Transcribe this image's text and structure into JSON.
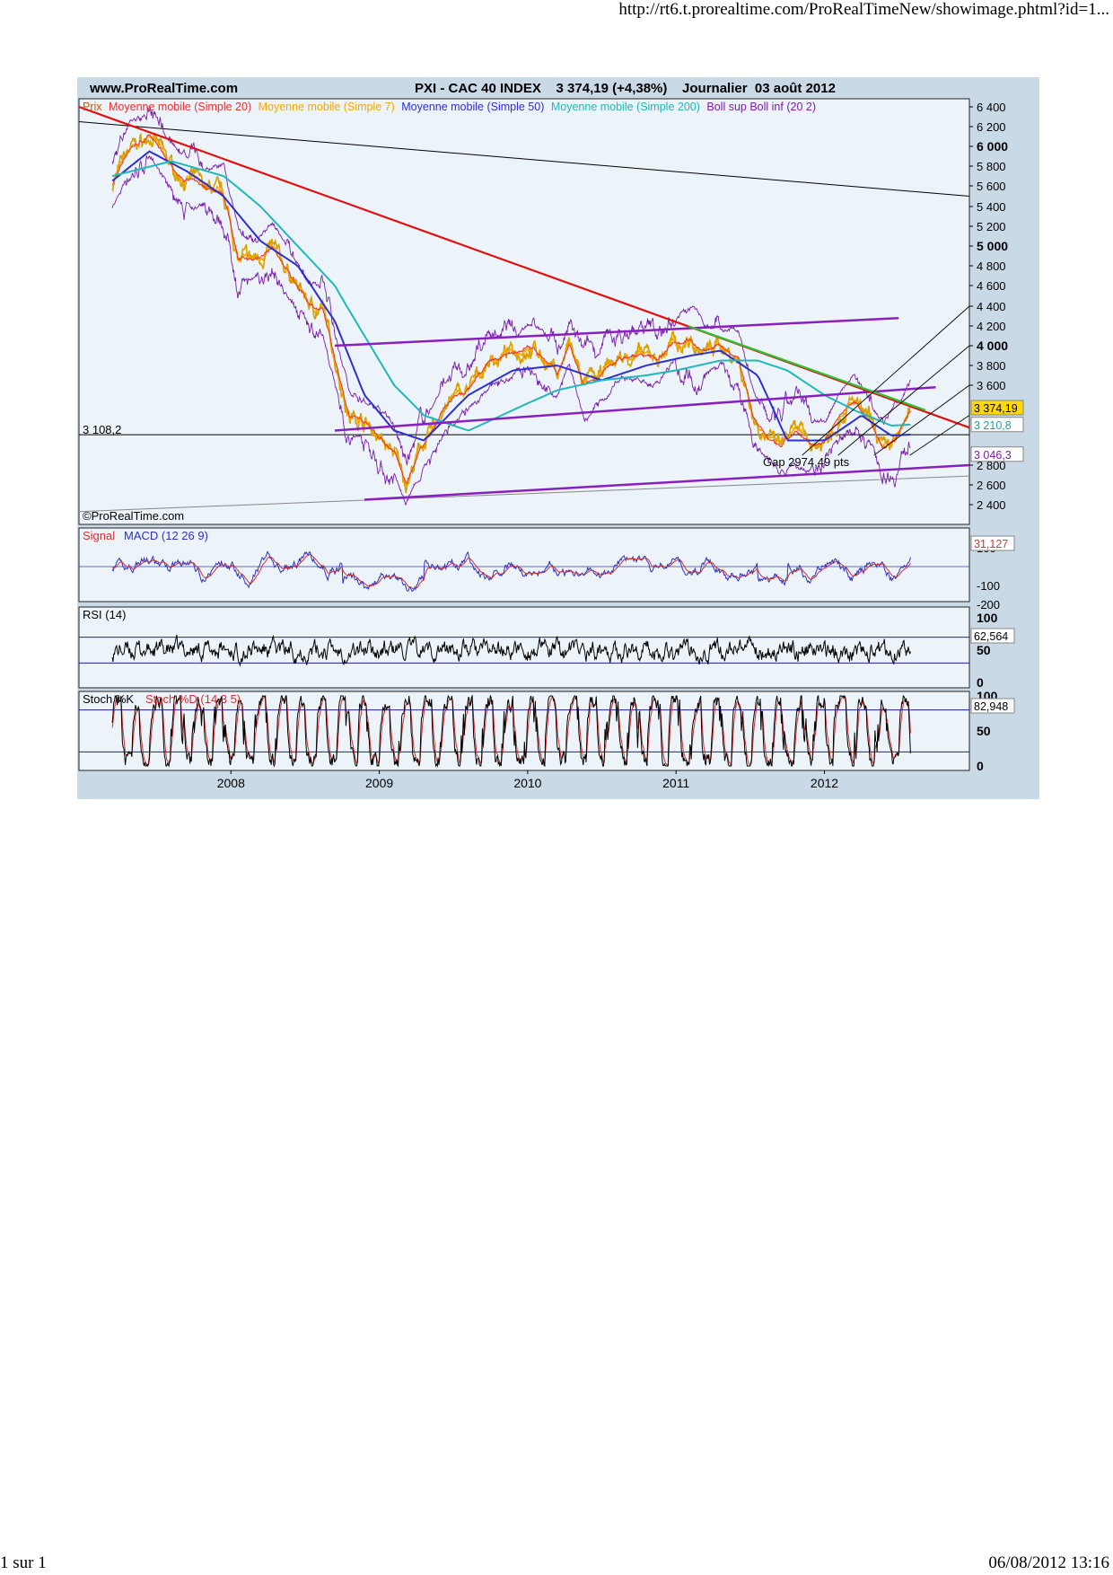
{
  "page": {
    "url": "http://rt6.t.prorealtime.com/ProRealTimeNew/showimage.phtml?id=1...",
    "footer_left": "1 sur 1",
    "footer_right": "06/08/2012 13:16"
  },
  "header": {
    "site": "www.ProRealTime.com",
    "title": "PXI - CAC 40 INDEX    3 374,19 (+4,38%)    Journalier  03 août 2012"
  },
  "colors": {
    "price": "#d8a000",
    "ma20": "#e8302c",
    "ma7": "#f2a900",
    "ma50": "#2f2fd0",
    "ma200": "#20b8b8",
    "boll": "#7a1fa8",
    "trend_red": "#e01010",
    "trend_green": "#30c030",
    "channel_purple": "#8a1fc0",
    "panel_bg": "#edf4f9",
    "frame_bg": "#c9d9e6",
    "last_price_box": "#ffd800"
  },
  "main_panel": {
    "legend": [
      {
        "text": "Prix",
        "color": "#c85a00"
      },
      {
        "text": "Moyenne mobile (Simple 20)",
        "color": "#e8302c"
      },
      {
        "text": "Moyenne mobile (Simple 7)",
        "color": "#f2a900"
      },
      {
        "text": "Moyenne mobile (Simple 50)",
        "color": "#2f2fd0"
      },
      {
        "text": "Moyenne mobile (Simple 200)",
        "color": "#20b8b8"
      },
      {
        "text": "Boll sup Boll inf (20 2)",
        "color": "#7a1fa8"
      }
    ],
    "level_label": "3 108,2",
    "gap_annotation": "Gap 2974,49 pts",
    "copyright": "©ProRealTime.com",
    "y_ticks": [
      {
        "v": 6400,
        "label": "6 400",
        "bold": false
      },
      {
        "v": 6200,
        "label": "6 200",
        "bold": false
      },
      {
        "v": 6000,
        "label": "6 000",
        "bold": true
      },
      {
        "v": 5800,
        "label": "5 800",
        "bold": false
      },
      {
        "v": 5600,
        "label": "5 600",
        "bold": false
      },
      {
        "v": 5400,
        "label": "5 400",
        "bold": false
      },
      {
        "v": 5200,
        "label": "5 200",
        "bold": false
      },
      {
        "v": 5000,
        "label": "5 000",
        "bold": true
      },
      {
        "v": 4800,
        "label": "4 800",
        "bold": false
      },
      {
        "v": 4600,
        "label": "4 600",
        "bold": false
      },
      {
        "v": 4400,
        "label": "4 400",
        "bold": false
      },
      {
        "v": 4200,
        "label": "4 200",
        "bold": false
      },
      {
        "v": 4000,
        "label": "4 000",
        "bold": true
      },
      {
        "v": 3800,
        "label": "3 800",
        "bold": false
      },
      {
        "v": 3600,
        "label": "3 600",
        "bold": false
      },
      {
        "v": 2800,
        "label": "2 800",
        "bold": false
      },
      {
        "v": 2600,
        "label": "2 600",
        "bold": false
      },
      {
        "v": 2400,
        "label": "2 400",
        "bold": false
      }
    ],
    "value_boxes": [
      {
        "label": "3 374,19",
        "v": 3374.19,
        "bg": "#ffd800",
        "fg": "#000000"
      },
      {
        "label": "3 210,8",
        "v": 3210.8,
        "bg": "#ffffff",
        "fg": "#20a0a0"
      },
      {
        "label": "3 046,3",
        "v": 3046.3,
        "bg": "#ffffff",
        "fg": "#7a1fa8"
      }
    ]
  },
  "macd_panel": {
    "label_signal": "Signal",
    "label_macd": "MACD (12 26 9)",
    "y_ticks": [
      {
        "v": 100,
        "label": "100"
      },
      {
        "v": -100,
        "label": "-100"
      },
      {
        "v": -200,
        "label": "-200"
      }
    ],
    "value_box": "31,127"
  },
  "rsi_panel": {
    "label": "RSI (14)",
    "y_ticks": [
      {
        "v": 100,
        "label": "100"
      },
      {
        "v": 50,
        "label": "50"
      },
      {
        "v": 0,
        "label": "0"
      }
    ],
    "value_box": "62,564"
  },
  "stoch_panel": {
    "label_k": "Stoch %K",
    "label_d": "Stoch %D (14 3 5)",
    "y_ticks": [
      {
        "v": 100,
        "label": "100"
      },
      {
        "v": 50,
        "label": "50"
      },
      {
        "v": 0,
        "label": "0"
      }
    ],
    "value_box": "82,948"
  },
  "chart_data": {
    "type": "line",
    "title": "PXI - CAC 40 INDEX 3 374,19 (+4,38%) Journalier 03 août 2012",
    "x_labels": [
      "2008",
      "2009",
      "2010",
      "2011",
      "2012"
    ],
    "ylim": [
      2300,
      6500
    ],
    "series": [
      {
        "name": "Prix",
        "x": [
          2007.2,
          2007.32,
          2007.45,
          2007.55,
          2007.65,
          2007.8,
          2007.95,
          2008.05,
          2008.15,
          2008.28,
          2008.4,
          2008.52,
          2008.62,
          2008.72,
          2008.8,
          2008.9,
          2009.0,
          2009.1,
          2009.18,
          2009.3,
          2009.45,
          2009.6,
          2009.75,
          2009.9,
          2010.0,
          2010.1,
          2010.2,
          2010.28,
          2010.38,
          2010.5,
          2010.62,
          2010.75,
          2010.88,
          2011.0,
          2011.1,
          2011.2,
          2011.3,
          2011.42,
          2011.52,
          2011.6,
          2011.7,
          2011.8,
          2011.9,
          2012.0,
          2012.1,
          2012.2,
          2012.3,
          2012.4,
          2012.5,
          2012.58
        ],
        "values": [
          5600,
          6000,
          6100,
          5900,
          5700,
          5600,
          5550,
          4900,
          4850,
          5000,
          4700,
          4450,
          4350,
          3750,
          3300,
          3250,
          3100,
          2950,
          2600,
          3000,
          3400,
          3550,
          3850,
          3900,
          4000,
          3900,
          3700,
          4000,
          3550,
          3700,
          3850,
          3900,
          3850,
          4050,
          4100,
          3950,
          4000,
          3900,
          3300,
          3100,
          2950,
          3100,
          3000,
          3050,
          3300,
          3450,
          3250,
          3000,
          3150,
          3374
        ]
      },
      {
        "name": "Moyenne mobile (Simple 50)",
        "x": [
          2007.2,
          2007.45,
          2007.7,
          2007.95,
          2008.2,
          2008.45,
          2008.7,
          2008.9,
          2009.1,
          2009.3,
          2009.6,
          2009.9,
          2010.2,
          2010.5,
          2010.8,
          2011.1,
          2011.3,
          2011.55,
          2011.75,
          2012.0,
          2012.25,
          2012.45,
          2012.58
        ],
        "values": [
          5650,
          5950,
          5750,
          5500,
          5050,
          4800,
          4250,
          3500,
          3150,
          3050,
          3500,
          3750,
          3800,
          3650,
          3800,
          3900,
          3950,
          3700,
          3050,
          3050,
          3300,
          3100,
          3110
        ]
      },
      {
        "name": "Moyenne mobile (Simple 200)",
        "x": [
          2007.2,
          2007.6,
          2007.95,
          2008.2,
          2008.45,
          2008.7,
          2008.9,
          2009.1,
          2009.3,
          2009.6,
          2009.9,
          2010.2,
          2010.5,
          2010.8,
          2011.0,
          2011.3,
          2011.55,
          2011.75,
          2012.0,
          2012.2,
          2012.45,
          2012.58
        ],
        "values": [
          5700,
          5850,
          5700,
          5400,
          5000,
          4600,
          4100,
          3600,
          3300,
          3150,
          3350,
          3550,
          3650,
          3700,
          3750,
          3850,
          3850,
          3750,
          3500,
          3350,
          3200,
          3210
        ]
      }
    ],
    "indicators": {
      "macd_last": 31.127,
      "rsi_last": 62.564,
      "stoch_last": 82.948,
      "rsi_levels": [
        70,
        30
      ],
      "stoch_levels": [
        80,
        20
      ]
    }
  }
}
